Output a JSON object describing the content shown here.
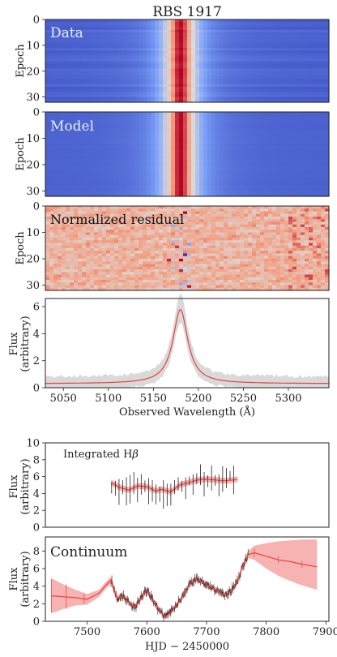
{
  "title": "RBS 1917",
  "colors": {
    "cold": "#3b4cc0",
    "warm": "#b40426",
    "model_line": "#e8413a",
    "band": "#f7b2b2",
    "error_bar": "#222222",
    "grey_band": "#d9d9d9"
  },
  "chart_data": [
    {
      "type": "heatmap",
      "panel": "data",
      "label": "Data",
      "ylabel": "Epoch",
      "y_ticks": [
        "0",
        "10",
        "20",
        "30"
      ],
      "ylim": [
        0,
        32
      ],
      "xlim": [
        5030,
        5345
      ],
      "line_center": 5180,
      "colormap": "coolwarm"
    },
    {
      "type": "heatmap",
      "panel": "model",
      "label": "Model",
      "ylabel": "Epoch",
      "y_ticks": [
        "0",
        "10",
        "20",
        "30"
      ],
      "ylim": [
        0,
        32
      ],
      "xlim": [
        5030,
        5345
      ],
      "line_center": 5180,
      "colormap": "coolwarm"
    },
    {
      "type": "heatmap",
      "panel": "residual",
      "label": "Normalized residual",
      "ylabel": "Epoch",
      "y_ticks": [
        "0",
        "10",
        "20",
        "30"
      ],
      "ylim": [
        0,
        32
      ],
      "xlim": [
        5030,
        5345
      ],
      "colormap": "coolwarm"
    },
    {
      "type": "line",
      "panel": "profile",
      "ylabel": "Flux\n(arbitrary)",
      "ylabel_lines": [
        "Flux",
        "(arbitrary)"
      ],
      "xlabel": "Observed Wavelength (Å)",
      "x_ticks": [
        "5050",
        "5100",
        "5150",
        "5200",
        "5250",
        "5300"
      ],
      "y_ticks": [
        "0",
        "2",
        "4",
        "6"
      ],
      "xlim": [
        5030,
        5345
      ],
      "ylim": [
        0,
        6.6
      ],
      "line_center": 5180,
      "line_width": 10,
      "peak": 5.8,
      "baseline": 0.3
    },
    {
      "type": "line",
      "panel": "hbeta",
      "label": "Integrated Hβ",
      "label_main": "Integrated H",
      "label_greek": "β",
      "ylabel_lines": [
        "Flux",
        "(arbitrary)"
      ],
      "y_ticks": [
        "0",
        "2",
        "4",
        "6",
        "8",
        "10"
      ],
      "ylim": [
        0,
        10
      ],
      "xlim": [
        7430,
        7905
      ],
      "model_x": [
        7540,
        7555,
        7570,
        7585,
        7600,
        7615,
        7625,
        7640,
        7655,
        7670,
        7685,
        7700,
        7715,
        7730,
        7745,
        7752
      ],
      "model_y": [
        5.3,
        4.7,
        4.4,
        4.9,
        4.8,
        4.3,
        4.5,
        4.2,
        5.0,
        5.3,
        5.6,
        5.7,
        5.6,
        5.5,
        5.6,
        5.7
      ]
    },
    {
      "type": "area",
      "panel": "continuum",
      "label": "Continuum",
      "ylabel_lines": [
        "Flux",
        "(arbitrary)"
      ],
      "xlabel": "HJD − 2450000",
      "x_ticks": [
        "7500",
        "7600",
        "7700",
        "7800",
        "7900"
      ],
      "y_ticks": [
        "0",
        "2",
        "4",
        "6",
        "8"
      ],
      "ylim": [
        0,
        9.6
      ],
      "xlim": [
        7430,
        7905
      ],
      "model_x": [
        7440,
        7460,
        7480,
        7500,
        7520,
        7530,
        7540,
        7550,
        7560,
        7570,
        7580,
        7590,
        7600,
        7610,
        7620,
        7630,
        7640,
        7650,
        7660,
        7670,
        7680,
        7690,
        7700,
        7710,
        7720,
        7730,
        7740,
        7750,
        7760,
        7770,
        7780,
        7800,
        7820,
        7840,
        7860,
        7885
      ],
      "model_y": [
        2.9,
        2.8,
        2.7,
        2.5,
        3.2,
        4.0,
        4.7,
        2.6,
        2.9,
        2.1,
        1.6,
        2.6,
        3.6,
        2.4,
        1.4,
        0.5,
        1.0,
        1.9,
        2.8,
        4.0,
        4.8,
        4.6,
        4.2,
        3.8,
        3.4,
        3.0,
        3.4,
        4.2,
        6.2,
        7.6,
        7.8,
        7.4,
        7.0,
        6.8,
        6.5,
        6.2
      ],
      "band_upper": [
        4.9,
        4.2,
        3.6,
        3.1,
        3.6,
        4.4,
        5.1,
        3.0,
        3.2,
        2.4,
        1.9,
        2.9,
        3.9,
        2.7,
        1.7,
        0.8,
        1.3,
        2.2,
        3.1,
        4.3,
        5.1,
        4.9,
        4.5,
        4.1,
        3.7,
        3.3,
        3.7,
        4.5,
        6.5,
        8.0,
        8.6,
        8.9,
        9.1,
        9.2,
        9.3,
        9.3
      ],
      "band_lower": [
        0.9,
        1.4,
        1.8,
        1.9,
        2.8,
        3.6,
        4.3,
        2.2,
        2.6,
        1.8,
        1.3,
        2.3,
        3.3,
        2.1,
        1.1,
        0.2,
        0.7,
        1.6,
        2.5,
        3.7,
        4.5,
        4.3,
        3.9,
        3.5,
        3.1,
        2.7,
        3.1,
        3.9,
        5.9,
        7.2,
        7.0,
        6.0,
        5.2,
        4.6,
        4.1,
        3.6
      ]
    }
  ]
}
